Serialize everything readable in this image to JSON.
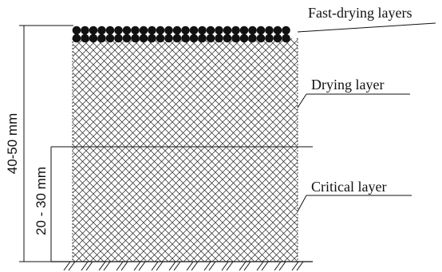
{
  "labels": {
    "fast_drying": "Fast-drying layers",
    "drying": "Drying layer",
    "critical": "Critical layer"
  },
  "dimensions": {
    "total": "40-50 mm",
    "lower": "20 - 30 mm"
  },
  "colors": {
    "ink": "#111111",
    "background": "#ffffff"
  }
}
